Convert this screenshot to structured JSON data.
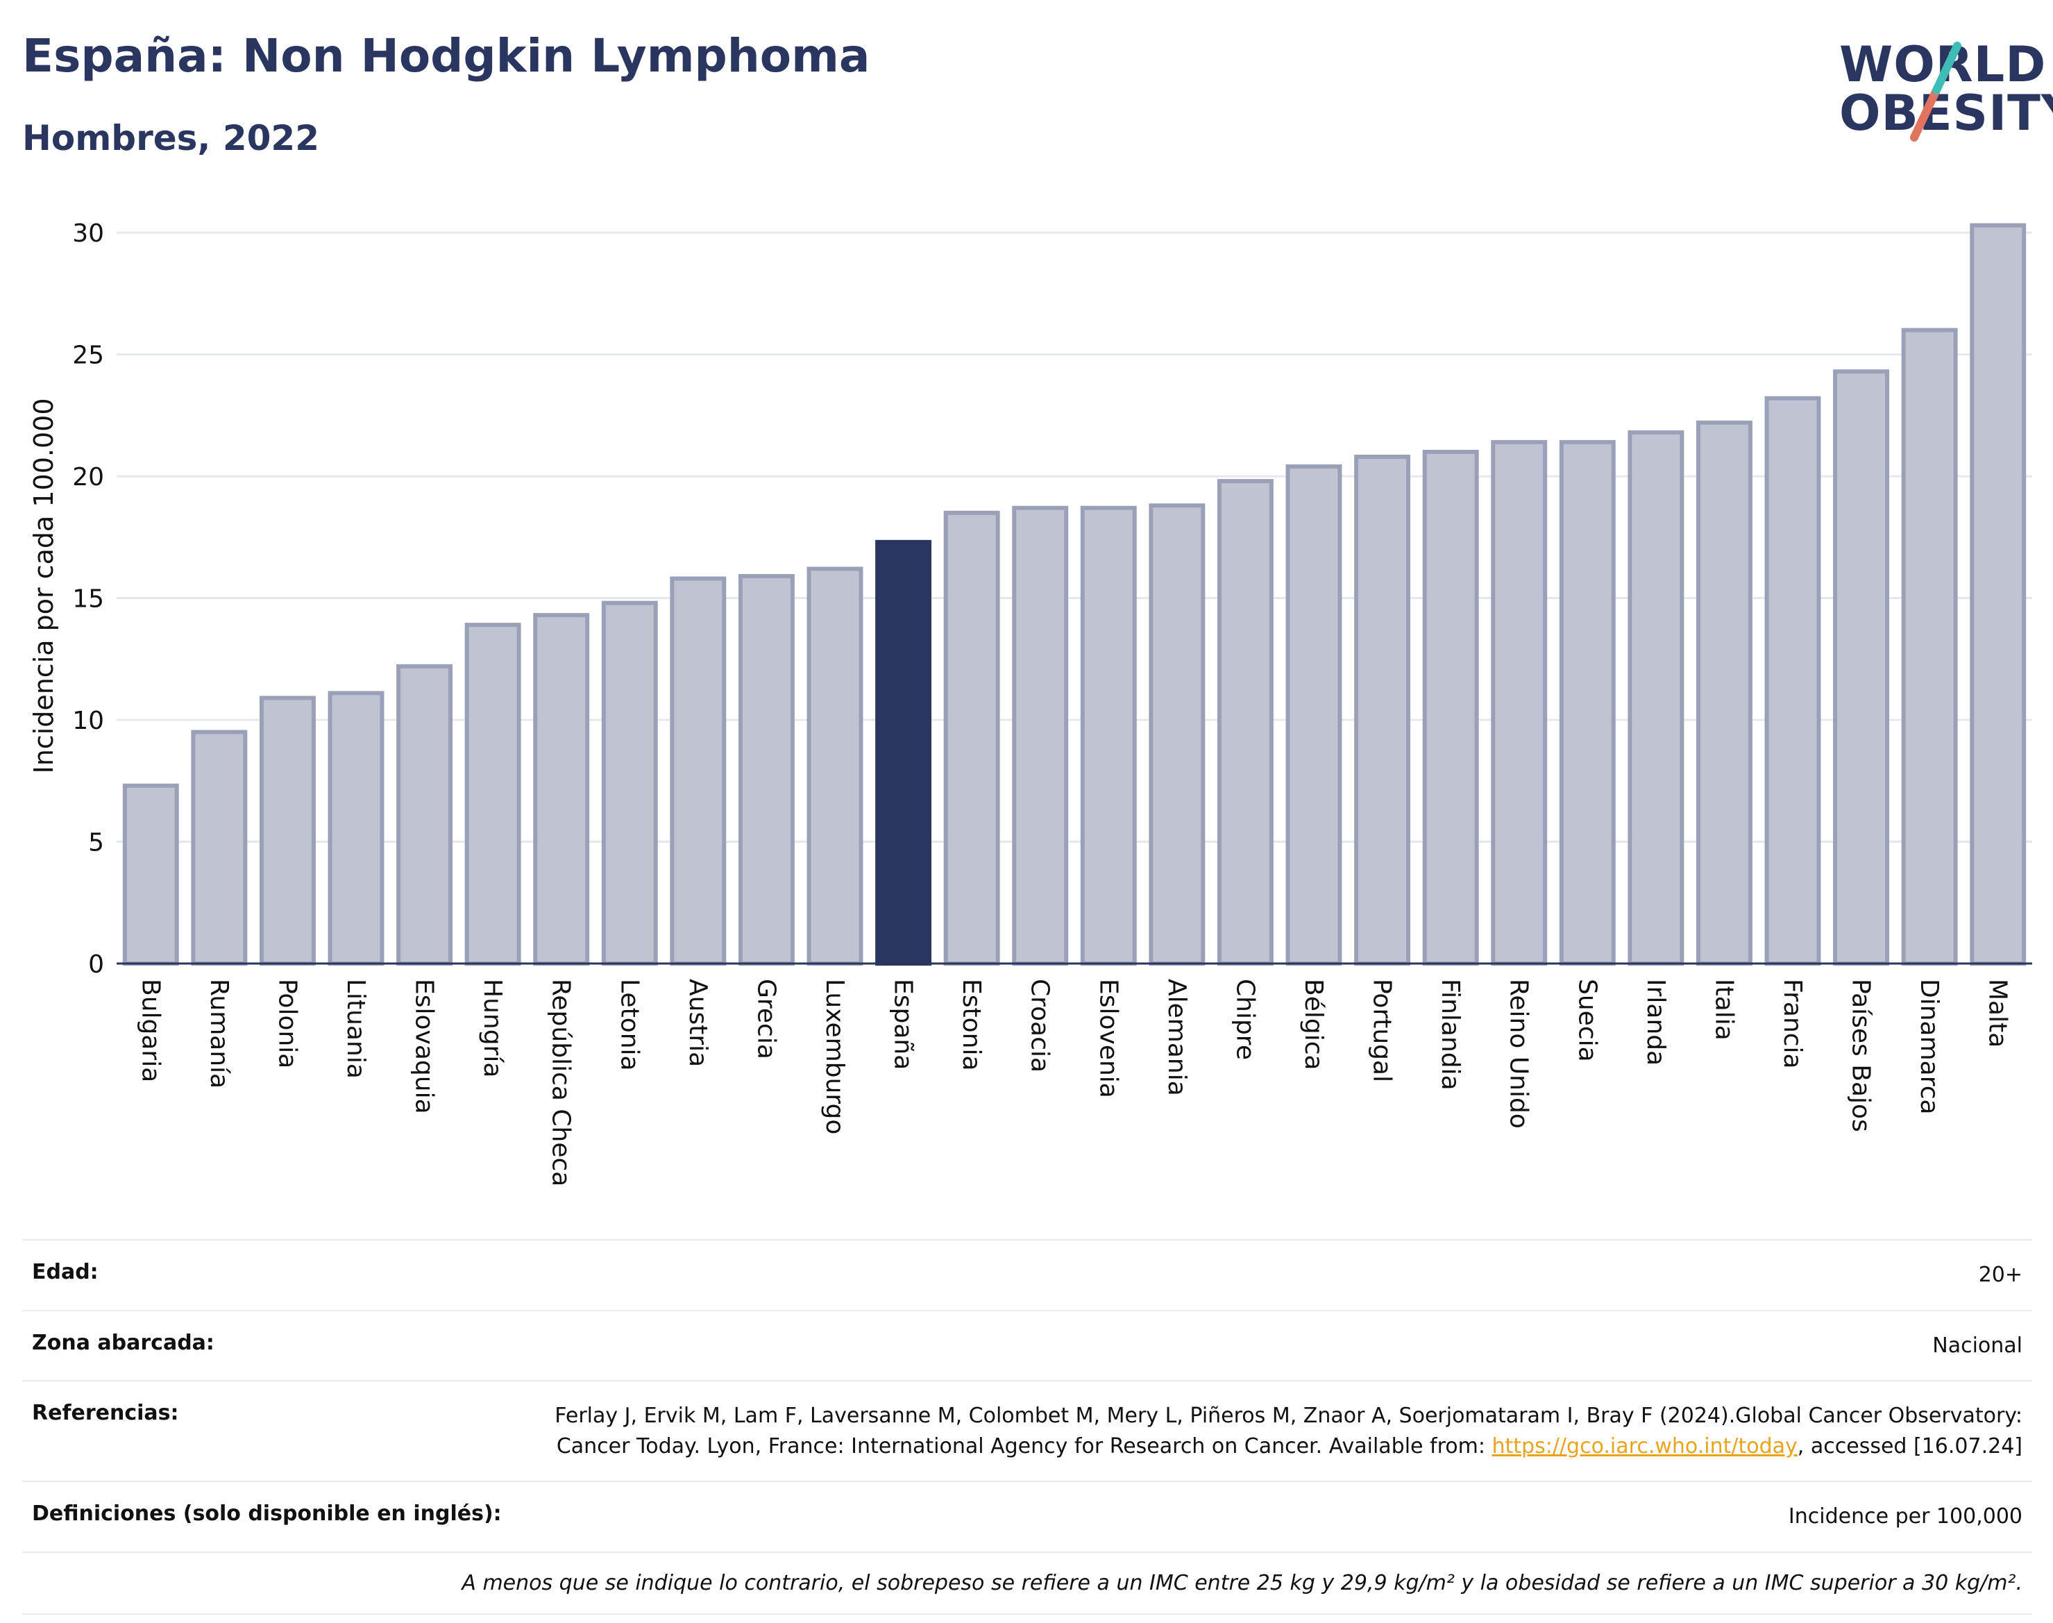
{
  "header": {
    "title": "España: Non Hodgkin Lymphoma",
    "subtitle": "Hombres, 2022"
  },
  "logo": {
    "line1": "WORLD",
    "line2": "OBESITY"
  },
  "colors": {
    "bar": "#c0c4d2",
    "bar_border": "#9aa0b8",
    "highlight": "#2a3560",
    "grid": "#e6e8ef",
    "axis": "#2a3560"
  },
  "chart_data": {
    "type": "bar",
    "ylabel": "Incidencia por cada 100.000",
    "ylim": [
      0,
      31
    ],
    "yticks": [
      0,
      5,
      10,
      15,
      20,
      25,
      30
    ],
    "grid": true,
    "highlight": "España",
    "categories": [
      "Bulgaria",
      "Rumanía",
      "Polonia",
      "Lituania",
      "Eslovaquia",
      "Hungría",
      "República Checa",
      "Letonia",
      "Austria",
      "Grecia",
      "Luxemburgo",
      "España",
      "Estonia",
      "Croacia",
      "Eslovenia",
      "Alemania",
      "Chipre",
      "Bélgica",
      "Portugal",
      "Finlandia",
      "Reino Unido",
      "Suecia",
      "Irlanda",
      "Italia",
      "Francia",
      "Países Bajos",
      "Dinamarca",
      "Malta"
    ],
    "values": [
      7.3,
      9.5,
      10.9,
      11.1,
      12.2,
      13.9,
      14.3,
      14.8,
      15.8,
      15.9,
      16.2,
      17.3,
      18.5,
      18.7,
      18.7,
      18.8,
      19.8,
      20.4,
      20.8,
      21.0,
      21.4,
      21.4,
      21.8,
      22.2,
      23.2,
      24.3,
      26.0,
      30.3
    ]
  },
  "meta": {
    "age_label": "Edad:",
    "age_value": "20+",
    "area_label": "Zona abarcada:",
    "area_value": "Nacional",
    "ref_label": "Referencias:",
    "ref_text_1": "Ferlay J, Ervik M, Lam F, Laversanne M, Colombet M, Mery L, Piñeros M, Znaor A, Soerjomataram I, Bray F (2024).Global Cancer Observatory: Cancer Today. Lyon, France: International Agency for Research on Cancer. Available from: ",
    "ref_link": "https://gco.iarc.who.int/today",
    "ref_text_2": ", accessed [16.07.24]",
    "def_label": "Definiciones (solo disponible en inglés):",
    "def_value": "Incidence per 100,000",
    "note": "A menos que se indique lo contrario, el sobrepeso se refiere a un IMC entre 25 kg y 29,9 kg/m² y la obesidad se refiere a un IMC superior a 30 kg/m²."
  }
}
